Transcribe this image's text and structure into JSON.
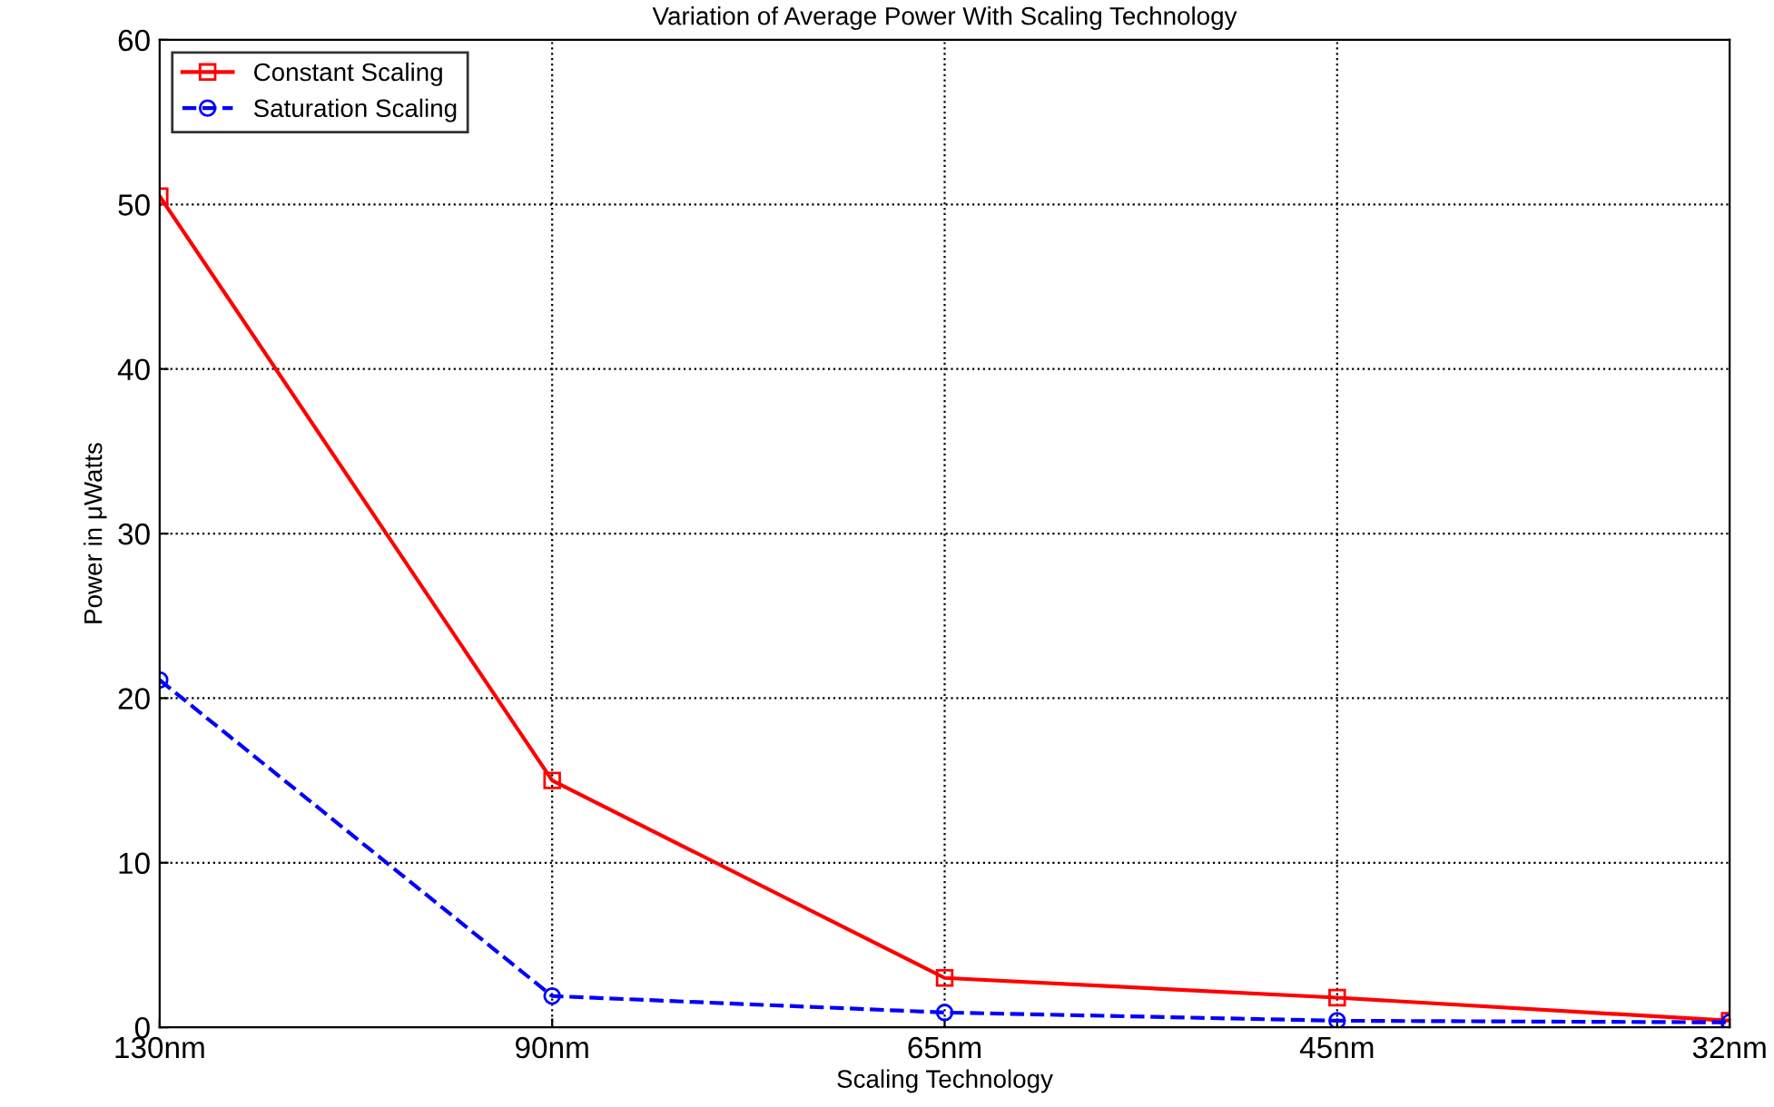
{
  "chart_data": {
    "type": "line",
    "title": "Variation of Average Power With Scaling Technology",
    "xlabel": "Scaling Technology",
    "ylabel": "Power in μWatts",
    "categories": [
      "130nm",
      "90nm",
      "65nm",
      "45nm",
      "32nm"
    ],
    "series": [
      {
        "name": "Constant Scaling",
        "color": "#ff0000",
        "values": [
          50.5,
          15,
          3,
          1.8,
          0.4
        ],
        "marker": "square",
        "line_style": "solid"
      },
      {
        "name": "Saturation Scaling",
        "color": "#0000ff",
        "values": [
          21.1,
          1.9,
          0.9,
          0.4,
          0.3
        ],
        "marker": "circle",
        "line_style": "dashed"
      }
    ],
    "ylim": [
      0,
      60
    ],
    "yticks": [
      0,
      10,
      20,
      30,
      40,
      50,
      60
    ],
    "grid": true,
    "legend": "top left"
  }
}
